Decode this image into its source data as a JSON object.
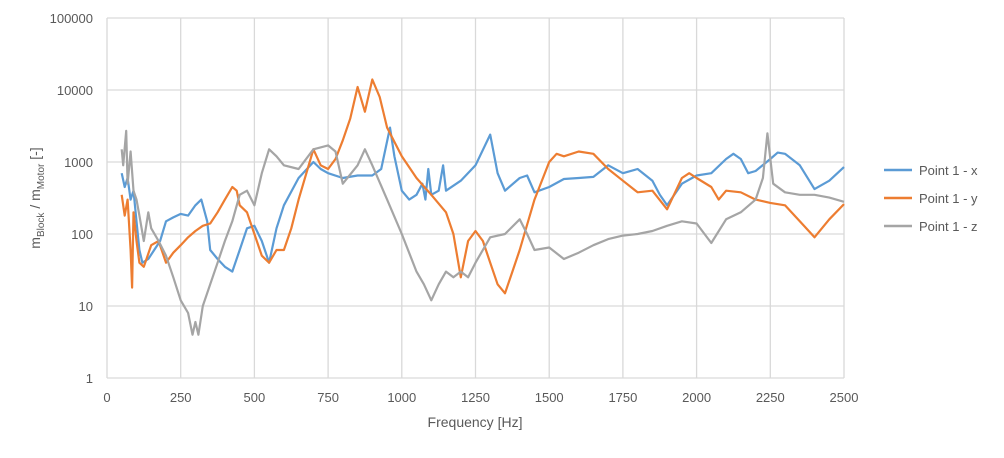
{
  "chart_data": {
    "type": "line",
    "title": "",
    "xlabel": "Frequency [Hz]",
    "ylabel_main": "m",
    "ylabel_sub1": "Block",
    "ylabel_mid": " / m",
    "ylabel_sub2": "Motor",
    "ylabel_end": " [-]",
    "xlim": [
      0,
      2500
    ],
    "ylim": [
      1,
      100000
    ],
    "yscale": "log",
    "grid": true,
    "legend_position": "right",
    "x_ticks": [
      "0",
      "250",
      "500",
      "750",
      "1000",
      "1250",
      "1500",
      "1750",
      "2000",
      "2250",
      "2500"
    ],
    "y_ticks": [
      "1",
      "10",
      "100",
      "1000",
      "10000",
      "100000"
    ],
    "series": [
      {
        "name": "Point 1 - x",
        "color": "#5B9BD5",
        "x": [
          50,
          60,
          70,
          80,
          90,
          100,
          110,
          120,
          140,
          160,
          180,
          200,
          225,
          250,
          275,
          300,
          320,
          340,
          350,
          375,
          400,
          425,
          450,
          475,
          500,
          525,
          550,
          575,
          600,
          650,
          700,
          725,
          750,
          800,
          850,
          900,
          930,
          960,
          975,
          1000,
          1025,
          1050,
          1070,
          1080,
          1090,
          1100,
          1125,
          1140,
          1150,
          1200,
          1250,
          1300,
          1325,
          1350,
          1400,
          1425,
          1450,
          1500,
          1550,
          1600,
          1650,
          1700,
          1750,
          1800,
          1850,
          1875,
          1900,
          1950,
          2000,
          2050,
          2100,
          2125,
          2150,
          2175,
          2200,
          2250,
          2275,
          2300,
          2350,
          2400,
          2450,
          2500
        ],
        "y": [
          700,
          450,
          600,
          300,
          400,
          150,
          60,
          40,
          45,
          60,
          80,
          150,
          170,
          190,
          180,
          250,
          300,
          150,
          60,
          45,
          35,
          30,
          60,
          120,
          130,
          80,
          40,
          120,
          250,
          600,
          1000,
          800,
          700,
          600,
          650,
          650,
          800,
          3000,
          1200,
          400,
          300,
          350,
          500,
          300,
          800,
          350,
          400,
          900,
          400,
          550,
          900,
          2400,
          700,
          400,
          600,
          650,
          380,
          450,
          580,
          600,
          620,
          900,
          700,
          800,
          550,
          350,
          250,
          500,
          650,
          700,
          1100,
          1300,
          1100,
          700,
          750,
          1100,
          1350,
          1300,
          900,
          420,
          550,
          850
        ]
      },
      {
        "name": "Point 1 - y",
        "color": "#ED7D31",
        "x": [
          50,
          60,
          70,
          80,
          85,
          90,
          100,
          110,
          125,
          150,
          175,
          200,
          225,
          250,
          275,
          300,
          325,
          350,
          375,
          400,
          425,
          440,
          450,
          475,
          500,
          525,
          550,
          575,
          600,
          625,
          650,
          700,
          725,
          750,
          775,
          800,
          825,
          850,
          875,
          900,
          925,
          950,
          1000,
          1050,
          1100,
          1150,
          1175,
          1200,
          1225,
          1250,
          1275,
          1300,
          1325,
          1350,
          1375,
          1400,
          1450,
          1500,
          1525,
          1550,
          1600,
          1650,
          1700,
          1750,
          1800,
          1850,
          1900,
          1950,
          1975,
          2000,
          2050,
          2075,
          2100,
          2150,
          2200,
          2250,
          2300,
          2350,
          2400,
          2450,
          2500
        ],
        "y": [
          350,
          180,
          300,
          60,
          18,
          200,
          80,
          40,
          35,
          70,
          80,
          40,
          55,
          70,
          90,
          110,
          130,
          140,
          200,
          300,
          450,
          400,
          250,
          200,
          100,
          50,
          40,
          60,
          60,
          120,
          300,
          1500,
          900,
          800,
          1100,
          2000,
          4000,
          11000,
          5000,
          14000,
          8000,
          3000,
          1200,
          600,
          350,
          200,
          100,
          25,
          80,
          110,
          80,
          40,
          20,
          15,
          30,
          60,
          300,
          1000,
          1300,
          1200,
          1400,
          1300,
          800,
          550,
          380,
          400,
          220,
          600,
          700,
          600,
          450,
          300,
          400,
          380,
          300,
          270,
          250,
          150,
          90,
          160,
          260
        ]
      },
      {
        "name": "Point 1 - z",
        "color": "#A5A5A5",
        "x": [
          50,
          55,
          65,
          70,
          80,
          90,
          100,
          110,
          125,
          140,
          150,
          175,
          200,
          225,
          250,
          275,
          290,
          300,
          310,
          325,
          350,
          375,
          400,
          425,
          450,
          475,
          500,
          525,
          550,
          575,
          600,
          650,
          700,
          750,
          775,
          800,
          850,
          875,
          900,
          950,
          1000,
          1050,
          1075,
          1100,
          1125,
          1150,
          1175,
          1200,
          1225,
          1250,
          1300,
          1350,
          1400,
          1425,
          1450,
          1500,
          1550,
          1600,
          1650,
          1700,
          1750,
          1800,
          1850,
          1900,
          1950,
          2000,
          2050,
          2100,
          2150,
          2200,
          2225,
          2240,
          2260,
          2300,
          2350,
          2400,
          2450,
          2500
        ],
        "y": [
          1500,
          900,
          2700,
          500,
          1400,
          400,
          300,
          180,
          80,
          200,
          120,
          80,
          50,
          25,
          12,
          8,
          4,
          6,
          4,
          10,
          20,
          40,
          80,
          150,
          350,
          400,
          250,
          700,
          1500,
          1200,
          900,
          800,
          1500,
          1700,
          1400,
          500,
          900,
          1500,
          900,
          300,
          100,
          30,
          20,
          12,
          20,
          30,
          25,
          30,
          25,
          40,
          90,
          100,
          160,
          100,
          60,
          65,
          45,
          55,
          70,
          85,
          95,
          100,
          110,
          130,
          150,
          140,
          75,
          160,
          200,
          300,
          600,
          2500,
          500,
          380,
          350,
          350,
          320,
          280
        ]
      }
    ]
  }
}
